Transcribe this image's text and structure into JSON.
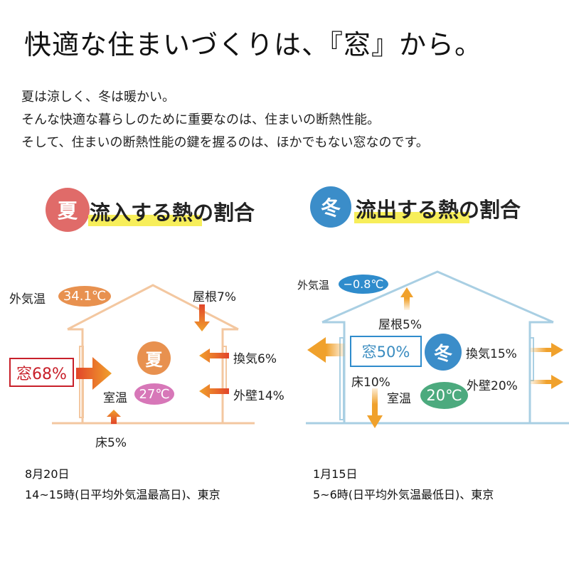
{
  "title": "快適な住まいづくりは、『窓』から。",
  "intro": [
    "夏は涼しく、冬は暖かい。",
    "そんな快適な暮らしのために重要なのは、住まいの断熱性能。",
    "そして、住まいの断熱性能の鍵を握るのは、ほかでもない窓なのです。"
  ],
  "summer": {
    "badge": "夏",
    "heading": "流入する熱の割合",
    "outdoor_label": "外気温",
    "outdoor_temp": "34.1℃",
    "roof": "屋根7%",
    "house_badge": "夏",
    "window": "窓68%",
    "ventilation": "換気6%",
    "wall": "外壁14%",
    "room_label": "室温",
    "room_temp": "27℃",
    "floor": "床5%",
    "date": "8月20日",
    "note": "14~15時(日平均外気温最高日)、東京",
    "colors": {
      "badge": "#e06b69",
      "line": "#f3c7a0",
      "outdoor": "#e8914f",
      "room": "#d777b8",
      "window": "#c8202a"
    }
  },
  "winter": {
    "badge": "冬",
    "heading": "流出する熱の割合",
    "outdoor_label": "外気温",
    "outdoor_temp": "−0.8℃",
    "roof": "屋根5%",
    "house_badge": "冬",
    "window": "窓50%",
    "ventilation": "換気15%",
    "wall": "外壁20%",
    "room_label": "室温",
    "room_temp": "20℃",
    "floor": "床10%",
    "date": "1月15日",
    "note": "5~6時(日平均外気温最低日)、東京",
    "colors": {
      "badge": "#3b8dc9",
      "line": "#a9cfe3",
      "outdoor": "#2f8ccc",
      "room": "#4caa7e",
      "window": "#2f8ccc"
    }
  }
}
